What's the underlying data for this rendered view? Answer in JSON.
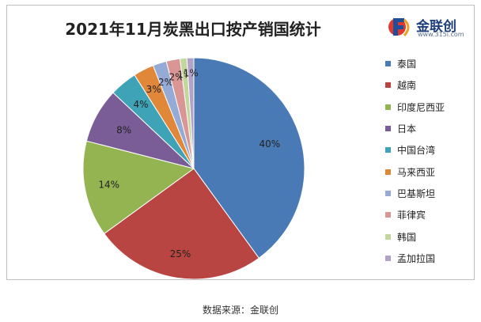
{
  "chart_data": {
    "type": "pie",
    "title": "2021年11月炭黑出口按产销国统计",
    "categories": [
      "泰国",
      "越南",
      "印度尼西亚",
      "日本",
      "中国台湾",
      "马来西亚",
      "巴基斯坦",
      "菲律宾",
      "韩国",
      "孟加拉国"
    ],
    "values": [
      40,
      25,
      14,
      8,
      4,
      3,
      2,
      2,
      1,
      1
    ],
    "data_labels": [
      "40%",
      "25%",
      "14%",
      "8%",
      "4%",
      "3%",
      "2%",
      "2%",
      "1%",
      "1%"
    ],
    "colors": [
      "#4a7ab5",
      "#b94542",
      "#93b451",
      "#7a5c96",
      "#3fa3b8",
      "#e0873a",
      "#95abd6",
      "#d99694",
      "#c3d69b",
      "#b3a2c7"
    ],
    "legend_position": "right"
  },
  "logo": {
    "name": "金联创",
    "url": "www.315i.com"
  },
  "source": "数据来源：金联创"
}
